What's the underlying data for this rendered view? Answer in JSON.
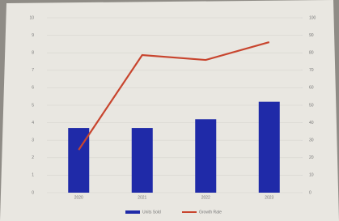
{
  "chart_data": {
    "type": "bar-line",
    "categories": [
      "2020",
      "2021",
      "2022",
      "2023"
    ],
    "series": [
      {
        "name": "Units Sold",
        "color": "#1f2aa8",
        "type": "bar",
        "values": [
          3.7,
          3.7,
          4.2,
          5.2
        ]
      },
      {
        "name": "Growth Rate",
        "color": "#c8452e",
        "type": "line",
        "axis": "y2",
        "values": [
          24.5,
          78.7,
          75.9,
          86.1
        ]
      }
    ],
    "ylim": [
      0,
      10
    ],
    "yticks": [
      0,
      1,
      2,
      3,
      4,
      5,
      6,
      7,
      8,
      9,
      10
    ],
    "y2lim": [
      0,
      100
    ],
    "y2ticks": [
      0,
      10,
      20,
      30,
      40,
      50,
      60,
      70,
      80,
      90,
      100
    ],
    "grid": true
  }
}
